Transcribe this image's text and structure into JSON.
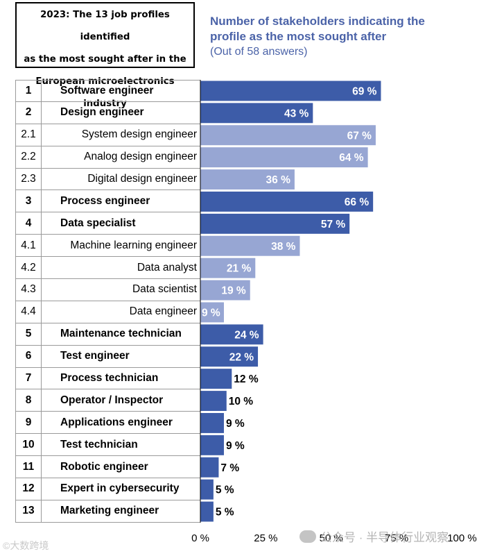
{
  "header": {
    "title_lines": [
      "2023: The 13 job profiles identified",
      "as the most sought after in the",
      "European microelectronics industry"
    ],
    "subtitle_lines": [
      "Number of stakeholders indicating the",
      "profile as the most sought after"
    ],
    "note": "(Out of 58 answers)"
  },
  "colors": {
    "main": "#3d5ca8",
    "sub": "#97a6d3",
    "inside_label": "#ffffff",
    "outside_label": "#000000"
  },
  "chart_data": {
    "type": "bar",
    "orientation": "horizontal",
    "title": "Number of stakeholders indicating the profile as the most sought after",
    "note": "(Out of 58 answers)",
    "unit": "%",
    "xlim": [
      0,
      100
    ],
    "x_ticks": [
      "0 %",
      "25 %",
      "50 %",
      "75 %",
      "100 %"
    ],
    "rows": [
      {
        "rank": "1",
        "label": "Software engineer",
        "value": 69,
        "value_label": "69 %",
        "level": "main"
      },
      {
        "rank": "2",
        "label": "Design engineer",
        "value": 43,
        "value_label": "43 %",
        "level": "main"
      },
      {
        "rank": "2.1",
        "label": "System design engineer",
        "value": 67,
        "value_label": "67 %",
        "level": "sub"
      },
      {
        "rank": "2.2",
        "label": "Analog design engineer",
        "value": 64,
        "value_label": "64 %",
        "level": "sub"
      },
      {
        "rank": "2.3",
        "label": "Digital design engineer",
        "value": 36,
        "value_label": "36 %",
        "level": "sub"
      },
      {
        "rank": "3",
        "label": "Process engineer",
        "value": 66,
        "value_label": "66 %",
        "level": "main"
      },
      {
        "rank": "4",
        "label": "Data specialist",
        "value": 57,
        "value_label": "57 %",
        "level": "main"
      },
      {
        "rank": "4.1",
        "label": "Machine learning engineer",
        "value": 38,
        "value_label": "38 %",
        "level": "sub"
      },
      {
        "rank": "4.2",
        "label": "Data analyst",
        "value": 21,
        "value_label": "21 %",
        "level": "sub"
      },
      {
        "rank": "4.3",
        "label": "Data scientist",
        "value": 19,
        "value_label": "19 %",
        "level": "sub"
      },
      {
        "rank": "4.4",
        "label": "Data engineer",
        "value": 9,
        "value_label": "9 %",
        "level": "sub"
      },
      {
        "rank": "5",
        "label": "Maintenance technician",
        "value": 24,
        "value_label": "24 %",
        "level": "main"
      },
      {
        "rank": "6",
        "label": "Test engineer",
        "value": 22,
        "value_label": "22 %",
        "level": "main"
      },
      {
        "rank": "7",
        "label": "Process technician",
        "value": 12,
        "value_label": "12 %",
        "level": "main"
      },
      {
        "rank": "8",
        "label": "Operator / Inspector",
        "value": 10,
        "value_label": "10 %",
        "level": "main"
      },
      {
        "rank": "9",
        "label": "Applications engineer",
        "value": 9,
        "value_label": "9 %",
        "level": "main"
      },
      {
        "rank": "10",
        "label": "Test technician",
        "value": 9,
        "value_label": "9 %",
        "level": "main"
      },
      {
        "rank": "11",
        "label": "Robotic engineer",
        "value": 7,
        "value_label": "7 %",
        "level": "main"
      },
      {
        "rank": "12",
        "label": "Expert in cybersecurity",
        "value": 5,
        "value_label": "5 %",
        "level": "main"
      },
      {
        "rank": "13",
        "label": "Marketing engineer",
        "value": 5,
        "value_label": "5 %",
        "level": "main"
      }
    ]
  },
  "footer": {
    "source": "©大数跨境",
    "watermark": "公众号 · 半导体行业观察"
  }
}
